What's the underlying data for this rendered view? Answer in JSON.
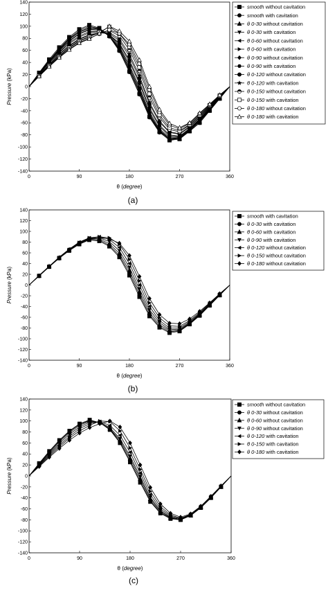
{
  "chart_data": [
    {
      "type": "line",
      "caption": "(a)",
      "xlabel_symbol": "θ",
      "xlabel_unit": "degree",
      "ylabel": "Pressure",
      "ylabel_unit": "(kPa)",
      "xlim": [
        0,
        360
      ],
      "ylim": [
        -140,
        140
      ],
      "xticks": [
        0,
        90,
        180,
        270,
        360
      ],
      "yticks": [
        140,
        120,
        100,
        80,
        60,
        40,
        20,
        0,
        -20,
        -40,
        -60,
        -80,
        -100,
        -120,
        -140
      ],
      "legend_position": "top-right",
      "x": [
        0,
        18,
        36,
        54,
        72,
        90,
        108,
        126,
        144,
        162,
        180,
        198,
        216,
        234,
        252,
        270,
        288,
        306,
        324,
        342,
        360
      ],
      "series": [
        {
          "name_prefix": "smooth",
          "name_rest": " without cavitation",
          "marker": "square-filled",
          "values": [
            0,
            23,
            45,
            65,
            82,
            95,
            102,
            97,
            84,
            60,
            25,
            -12,
            -50,
            -75,
            -89,
            -87,
            -74,
            -60,
            -40,
            -20,
            0
          ]
        },
        {
          "name_prefix": "smooth",
          "name_rest": " with cavitation",
          "marker": "circle-filled",
          "values": [
            0,
            22,
            43,
            63,
            80,
            93,
            100,
            96,
            83,
            59,
            24,
            -13,
            -51,
            -76,
            -88,
            -86,
            -74,
            -60,
            -40,
            -20,
            0
          ]
        },
        {
          "name_prefix": "θ 0-30",
          "name_rest": " without cavitation",
          "marker": "triangle-up-filled",
          "values": [
            0,
            22,
            43,
            62,
            79,
            91,
            98,
            96,
            84,
            62,
            28,
            -9,
            -48,
            -74,
            -87,
            -86,
            -73,
            -58,
            -39,
            -19,
            0
          ]
        },
        {
          "name_prefix": "θ 0-30",
          "name_rest": " with cavitation",
          "marker": "triangle-down-filled",
          "values": [
            0,
            21,
            42,
            61,
            78,
            90,
            97,
            95,
            84,
            63,
            30,
            -7,
            -47,
            -73,
            -86,
            -85,
            -72,
            -57,
            -38,
            -19,
            0
          ]
        },
        {
          "name_prefix": "θ 0-60",
          "name_rest": " without cavitation",
          "marker": "triangle-left-filled",
          "values": [
            0,
            21,
            42,
            60,
            76,
            88,
            95,
            94,
            84,
            65,
            33,
            -4,
            -45,
            -72,
            -86,
            -85,
            -72,
            -56,
            -38,
            -18,
            0
          ]
        },
        {
          "name_prefix": "θ 0-60",
          "name_rest": " with cavitation",
          "marker": "triangle-right-filled",
          "values": [
            0,
            21,
            41,
            59,
            75,
            87,
            94,
            94,
            86,
            67,
            36,
            -1,
            -42,
            -70,
            -84,
            -84,
            -71,
            -55,
            -37,
            -18,
            0
          ]
        },
        {
          "name_prefix": "θ 0-90",
          "name_rest": " without cavitation",
          "marker": "diamond-filled",
          "values": [
            0,
            20,
            40,
            57,
            73,
            84,
            91,
            92,
            86,
            70,
            41,
            5,
            -38,
            -66,
            -82,
            -83,
            -70,
            -54,
            -36,
            -17,
            0
          ]
        },
        {
          "name_prefix": "θ 0-90",
          "name_rest": " with cavitation",
          "marker": "hexagon-filled",
          "values": [
            0,
            20,
            39,
            56,
            71,
            82,
            89,
            91,
            86,
            72,
            44,
            8,
            -35,
            -64,
            -80,
            -82,
            -69,
            -53,
            -35,
            -17,
            0
          ]
        },
        {
          "name_prefix": "θ 0-120",
          "name_rest": " without cavitation",
          "marker": "circle-filled",
          "values": [
            0,
            19,
            37,
            54,
            68,
            79,
            86,
            89,
            88,
            76,
            50,
            14,
            -29,
            -59,
            -76,
            -79,
            -67,
            -51,
            -34,
            -16,
            0
          ]
        },
        {
          "name_prefix": "θ 0-120",
          "name_rest": " with cavitation",
          "marker": "star-filled",
          "values": [
            0,
            19,
            36,
            53,
            67,
            78,
            85,
            89,
            90,
            79,
            54,
            18,
            -26,
            -57,
            -75,
            -78,
            -66,
            -50,
            -33,
            -16,
            0
          ]
        },
        {
          "name_prefix": "θ 0-150",
          "name_rest": " without cavitation",
          "marker": "circle-half",
          "values": [
            0,
            18,
            35,
            51,
            65,
            76,
            83,
            89,
            93,
            84,
            61,
            26,
            -18,
            -51,
            -71,
            -75,
            -64,
            -48,
            -32,
            -15,
            0
          ]
        },
        {
          "name_prefix": "θ 0-150",
          "name_rest": " with cavitation",
          "marker": "square-open",
          "values": [
            0,
            18,
            35,
            50,
            64,
            75,
            82,
            90,
            99,
            88,
            66,
            32,
            -12,
            -47,
            -68,
            -73,
            -63,
            -47,
            -31,
            -15,
            0
          ]
        },
        {
          "name_prefix": "θ 0-180",
          "name_rest": " without cavitation",
          "marker": "circle-open",
          "values": [
            0,
            17,
            34,
            49,
            62,
            73,
            80,
            87,
            94,
            88,
            70,
            38,
            -5,
            -42,
            -64,
            -70,
            -61,
            -45,
            -30,
            -14,
            0
          ]
        },
        {
          "name_prefix": "θ 0-180",
          "name_rest": " with cavitation",
          "marker": "triangle-up-open",
          "values": [
            0,
            17,
            33,
            48,
            61,
            72,
            79,
            88,
            100,
            92,
            75,
            44,
            0,
            -38,
            -61,
            -68,
            -60,
            -44,
            -29,
            -14,
            0
          ]
        }
      ]
    },
    {
      "type": "line",
      "caption": "(b)",
      "xlabel_symbol": "θ",
      "xlabel_unit": "degree",
      "ylabel": "Pressure",
      "ylabel_unit": "(kPa)",
      "xlim": [
        0,
        360
      ],
      "ylim": [
        -140,
        140
      ],
      "xticks": [
        0,
        90,
        180,
        270,
        360
      ],
      "yticks": [
        140,
        120,
        100,
        80,
        60,
        40,
        20,
        0,
        -20,
        -40,
        -60,
        -80,
        -100,
        -120,
        -140
      ],
      "legend_position": "top-right",
      "x": [
        0,
        18,
        36,
        54,
        72,
        90,
        108,
        126,
        144,
        162,
        180,
        198,
        216,
        234,
        252,
        270,
        288,
        306,
        324,
        342,
        360
      ],
      "series": [
        {
          "name_prefix": "smooth",
          "name_rest": " with cavitation",
          "marker": "square-filled",
          "values": [
            0,
            17,
            34,
            50,
            64,
            76,
            84,
            82,
            72,
            52,
            18,
            -22,
            -58,
            -79,
            -89,
            -86,
            -73,
            -57,
            -38,
            -19,
            0
          ]
        },
        {
          "name_prefix": "θ 0-30",
          "name_rest": " with cavitation",
          "marker": "circle-filled",
          "values": [
            0,
            17,
            34,
            50,
            65,
            77,
            85,
            84,
            74,
            55,
            22,
            -18,
            -55,
            -77,
            -87,
            -85,
            -72,
            -56,
            -38,
            -19,
            0
          ]
        },
        {
          "name_prefix": "θ 0-60",
          "name_rest": " with cavitation",
          "marker": "triangle-up-filled",
          "values": [
            0,
            17,
            35,
            51,
            66,
            78,
            86,
            86,
            77,
            59,
            27,
            -13,
            -51,
            -74,
            -85,
            -84,
            -71,
            -55,
            -37,
            -18,
            0
          ]
        },
        {
          "name_prefix": "θ 0-90",
          "name_rest": " with cavitation",
          "marker": "triangle-down-filled",
          "values": [
            0,
            18,
            35,
            51,
            66,
            79,
            87,
            88,
            81,
            64,
            33,
            -7,
            -46,
            -70,
            -83,
            -82,
            -70,
            -54,
            -36,
            -18,
            0
          ]
        },
        {
          "name_prefix": "θ 0-120",
          "name_rest": " without cavitation",
          "marker": "triangle-left-filled",
          "values": [
            0,
            18,
            35,
            52,
            67,
            80,
            88,
            90,
            85,
            70,
            40,
            0,
            -40,
            -66,
            -80,
            -80,
            -68,
            -53,
            -35,
            -17,
            0
          ]
        },
        {
          "name_prefix": "θ 0-150",
          "name_rest": " without cavitation",
          "marker": "triangle-right-filled",
          "values": [
            0,
            17,
            34,
            51,
            66,
            79,
            88,
            90,
            88,
            76,
            48,
            8,
            -33,
            -61,
            -76,
            -77,
            -66,
            -51,
            -34,
            -17,
            0
          ]
        },
        {
          "name_prefix": "θ 0-180",
          "name_rest": " without cavitation",
          "marker": "diamond-filled",
          "values": [
            0,
            17,
            34,
            50,
            65,
            78,
            86,
            88,
            86,
            78,
            55,
            16,
            -25,
            -55,
            -71,
            -72,
            -63,
            -49,
            -33,
            -16,
            0
          ]
        }
      ]
    },
    {
      "type": "line",
      "caption": "(c)",
      "xlabel_symbol": "θ",
      "xlabel_unit": "degree",
      "ylabel": "Pressure",
      "ylabel_unit": "(kPa)",
      "xlim": [
        0,
        360
      ],
      "ylim": [
        -140,
        140
      ],
      "xticks": [
        0,
        90,
        180,
        270,
        360
      ],
      "yticks": [
        140,
        120,
        100,
        80,
        60,
        40,
        20,
        0,
        -20,
        -40,
        -60,
        -80,
        -100,
        -120,
        -140
      ],
      "legend_position": "top-right",
      "x": [
        0,
        18,
        36,
        54,
        72,
        90,
        108,
        126,
        144,
        162,
        180,
        198,
        216,
        234,
        252,
        270,
        288,
        306,
        324,
        342,
        360
      ],
      "series": [
        {
          "name_prefix": "smooth",
          "name_rest": " without cavitation",
          "marker": "square-filled",
          "values": [
            0,
            23,
            45,
            65,
            82,
            95,
            102,
            97,
            84,
            60,
            25,
            -12,
            -47,
            -68,
            -78,
            -80,
            -72,
            -58,
            -40,
            -20,
            0
          ]
        },
        {
          "name_prefix": "θ 0-30",
          "name_rest": " without cavitation",
          "marker": "circle-filled",
          "values": [
            0,
            22,
            44,
            64,
            81,
            94,
            101,
            97,
            85,
            62,
            28,
            -9,
            -45,
            -67,
            -77,
            -80,
            -72,
            -58,
            -40,
            -20,
            0
          ]
        },
        {
          "name_prefix": "θ 0-60",
          "name_rest": " without cavitation",
          "marker": "triangle-up-filled",
          "values": [
            0,
            21,
            42,
            62,
            79,
            92,
            100,
            97,
            86,
            65,
            32,
            -5,
            -42,
            -65,
            -76,
            -79,
            -72,
            -57,
            -39,
            -20,
            0
          ]
        },
        {
          "name_prefix": "θ 0-90",
          "name_rest": " without cavitation",
          "marker": "triangle-down-filled",
          "values": [
            0,
            20,
            40,
            59,
            76,
            89,
            98,
            98,
            88,
            68,
            36,
            -1,
            -39,
            -63,
            -75,
            -79,
            -71,
            -57,
            -39,
            -19,
            0
          ]
        },
        {
          "name_prefix": "θ 0-120",
          "name_rest": " with cavitation",
          "marker": "triangle-left-filled",
          "values": [
            0,
            19,
            38,
            56,
            72,
            86,
            95,
            99,
            92,
            74,
            43,
            5,
            -34,
            -60,
            -73,
            -78,
            -71,
            -56,
            -38,
            -19,
            0
          ]
        },
        {
          "name_prefix": "θ 0-150",
          "name_rest": " with cavitation",
          "marker": "triangle-right-filled",
          "values": [
            0,
            18,
            36,
            53,
            69,
            82,
            92,
            100,
            99,
            82,
            51,
            12,
            -28,
            -56,
            -71,
            -77,
            -70,
            -56,
            -38,
            -19,
            0
          ]
        },
        {
          "name_prefix": "θ 0-180",
          "name_rest": " with cavitation",
          "marker": "diamond-filled",
          "values": [
            0,
            17,
            34,
            50,
            65,
            78,
            88,
            95,
            100,
            89,
            60,
            20,
            -21,
            -51,
            -68,
            -75,
            -69,
            -55,
            -37,
            -18,
            0
          ]
        }
      ]
    }
  ]
}
